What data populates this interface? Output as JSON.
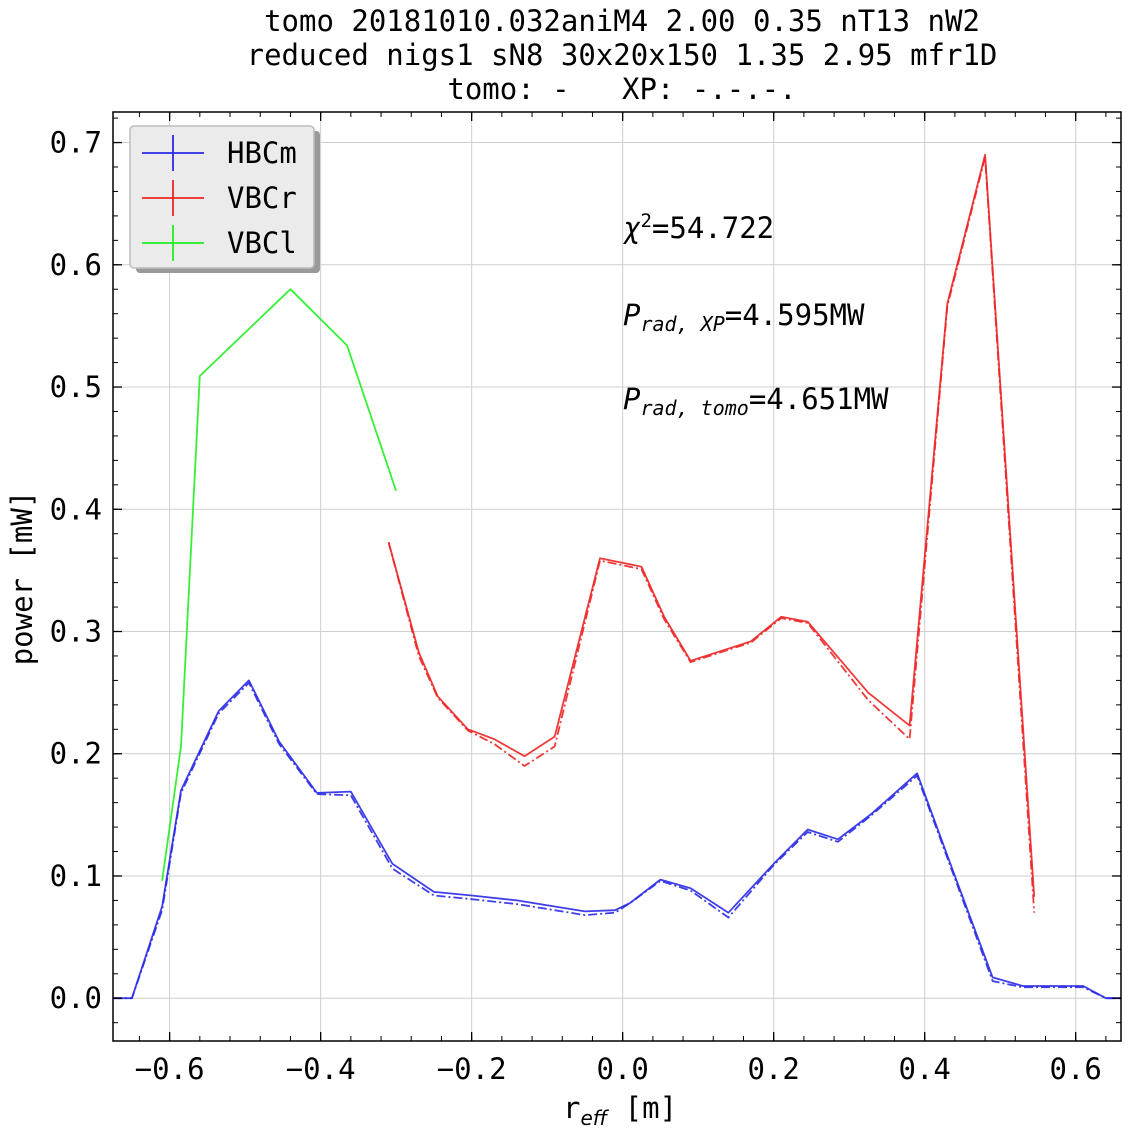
{
  "chart_data": {
    "type": "line",
    "title_lines": [
      "tomo 20181010.032aniM4 2.00 0.35 nT13 nW2",
      "reduced nigs1 sN8 30x20x150 1.35 2.95 mfr1D",
      "tomo: -   XP: -.-.-."
    ],
    "xlabel": {
      "main": "r",
      "sub": "eff",
      "unit": " [m]"
    },
    "ylabel": "power [mW]",
    "xlim": [
      -0.675,
      0.66
    ],
    "ylim": [
      -0.035,
      0.725
    ],
    "xticks": [
      -0.6,
      -0.4,
      -0.2,
      0.0,
      0.2,
      0.4,
      0.6
    ],
    "xtick_labels": [
      "−0.6",
      "−0.4",
      "−0.2",
      "0.0",
      "0.2",
      "0.4",
      "0.6"
    ],
    "yticks": [
      0.0,
      0.1,
      0.2,
      0.3,
      0.4,
      0.5,
      0.6,
      0.7
    ],
    "ytick_labels": [
      "0.0",
      "0.1",
      "0.2",
      "0.3",
      "0.4",
      "0.5",
      "0.6",
      "0.7"
    ],
    "grid": true,
    "legend_position": "top-left",
    "annotations": {
      "chi2": {
        "symbol": "χ",
        "sup": "2",
        "value": "=54.722"
      },
      "prad_xp": {
        "symbol": "P",
        "sub": "rad, XP",
        "value": "=4.595MW"
      },
      "prad_tomo": {
        "symbol": "P",
        "sub": "rad, tomo",
        "value": "=4.651MW"
      }
    },
    "series": [
      {
        "name": "HBCm",
        "color": "#2a2ae8",
        "style": "solid",
        "x": [
          -0.675,
          -0.65,
          -0.61,
          -0.585,
          -0.535,
          -0.495,
          -0.455,
          -0.405,
          -0.36,
          -0.305,
          -0.25,
          -0.2,
          -0.14,
          -0.09,
          -0.05,
          -0.01,
          0.01,
          0.05,
          0.09,
          0.14,
          0.2,
          0.245,
          0.285,
          0.33,
          0.39,
          0.44,
          0.49,
          0.53,
          0.57,
          0.61,
          0.64,
          0.66
        ],
        "y": [
          0.0,
          0.0,
          0.075,
          0.17,
          0.235,
          0.26,
          0.21,
          0.168,
          0.169,
          0.11,
          0.087,
          0.084,
          0.08,
          0.075,
          0.071,
          0.072,
          0.078,
          0.097,
          0.09,
          0.07,
          0.11,
          0.138,
          0.13,
          0.151,
          0.184,
          0.1,
          0.017,
          0.01,
          0.01,
          0.01,
          0.0,
          0.0
        ]
      },
      {
        "name": "VBCr",
        "color": "#ee2525",
        "style": "solid",
        "x": [
          -0.31,
          -0.27,
          -0.245,
          -0.205,
          -0.17,
          -0.13,
          -0.09,
          -0.03,
          0.025,
          0.055,
          0.09,
          0.17,
          0.21,
          0.245,
          0.325,
          0.38,
          0.43,
          0.48,
          0.545
        ],
        "y": [
          0.373,
          0.283,
          0.247,
          0.22,
          0.212,
          0.198,
          0.214,
          0.36,
          0.353,
          0.312,
          0.276,
          0.292,
          0.312,
          0.308,
          0.25,
          0.223,
          0.568,
          0.69,
          0.083
        ]
      },
      {
        "name": "VBCl",
        "color": "#22ee22",
        "style": "solid",
        "x": [
          -0.61,
          -0.585,
          -0.56,
          -0.44,
          -0.365,
          -0.3
        ],
        "y": [
          0.096,
          0.206,
          0.509,
          0.58,
          0.534,
          0.415
        ]
      },
      {
        "name": "",
        "color": "#2a2ae8",
        "style": "dashdot",
        "x": [
          -0.675,
          -0.65,
          -0.61,
          -0.585,
          -0.535,
          -0.495,
          -0.455,
          -0.405,
          -0.36,
          -0.305,
          -0.25,
          -0.2,
          -0.14,
          -0.09,
          -0.05,
          -0.01,
          0.01,
          0.05,
          0.09,
          0.14,
          0.2,
          0.245,
          0.285,
          0.33,
          0.39,
          0.44,
          0.49,
          0.53,
          0.57,
          0.61,
          0.64,
          0.66
        ],
        "y": [
          0.0,
          0.0,
          0.072,
          0.168,
          0.233,
          0.258,
          0.208,
          0.167,
          0.166,
          0.106,
          0.084,
          0.081,
          0.077,
          0.072,
          0.068,
          0.07,
          0.078,
          0.096,
          0.088,
          0.066,
          0.109,
          0.136,
          0.128,
          0.15,
          0.182,
          0.098,
          0.014,
          0.009,
          0.009,
          0.009,
          0.0,
          0.0
        ]
      },
      {
        "name": "",
        "color": "#ee2525",
        "style": "dashdot",
        "x": [
          -0.31,
          -0.27,
          -0.245,
          -0.205,
          -0.17,
          -0.13,
          -0.09,
          -0.03,
          0.025,
          0.055,
          0.09,
          0.17,
          0.21,
          0.245,
          0.325,
          0.38,
          0.43,
          0.48,
          0.545
        ],
        "y": [
          0.373,
          0.28,
          0.246,
          0.219,
          0.208,
          0.19,
          0.206,
          0.358,
          0.351,
          0.31,
          0.275,
          0.291,
          0.311,
          0.307,
          0.244,
          0.212,
          0.566,
          0.688,
          0.07
        ]
      }
    ]
  }
}
